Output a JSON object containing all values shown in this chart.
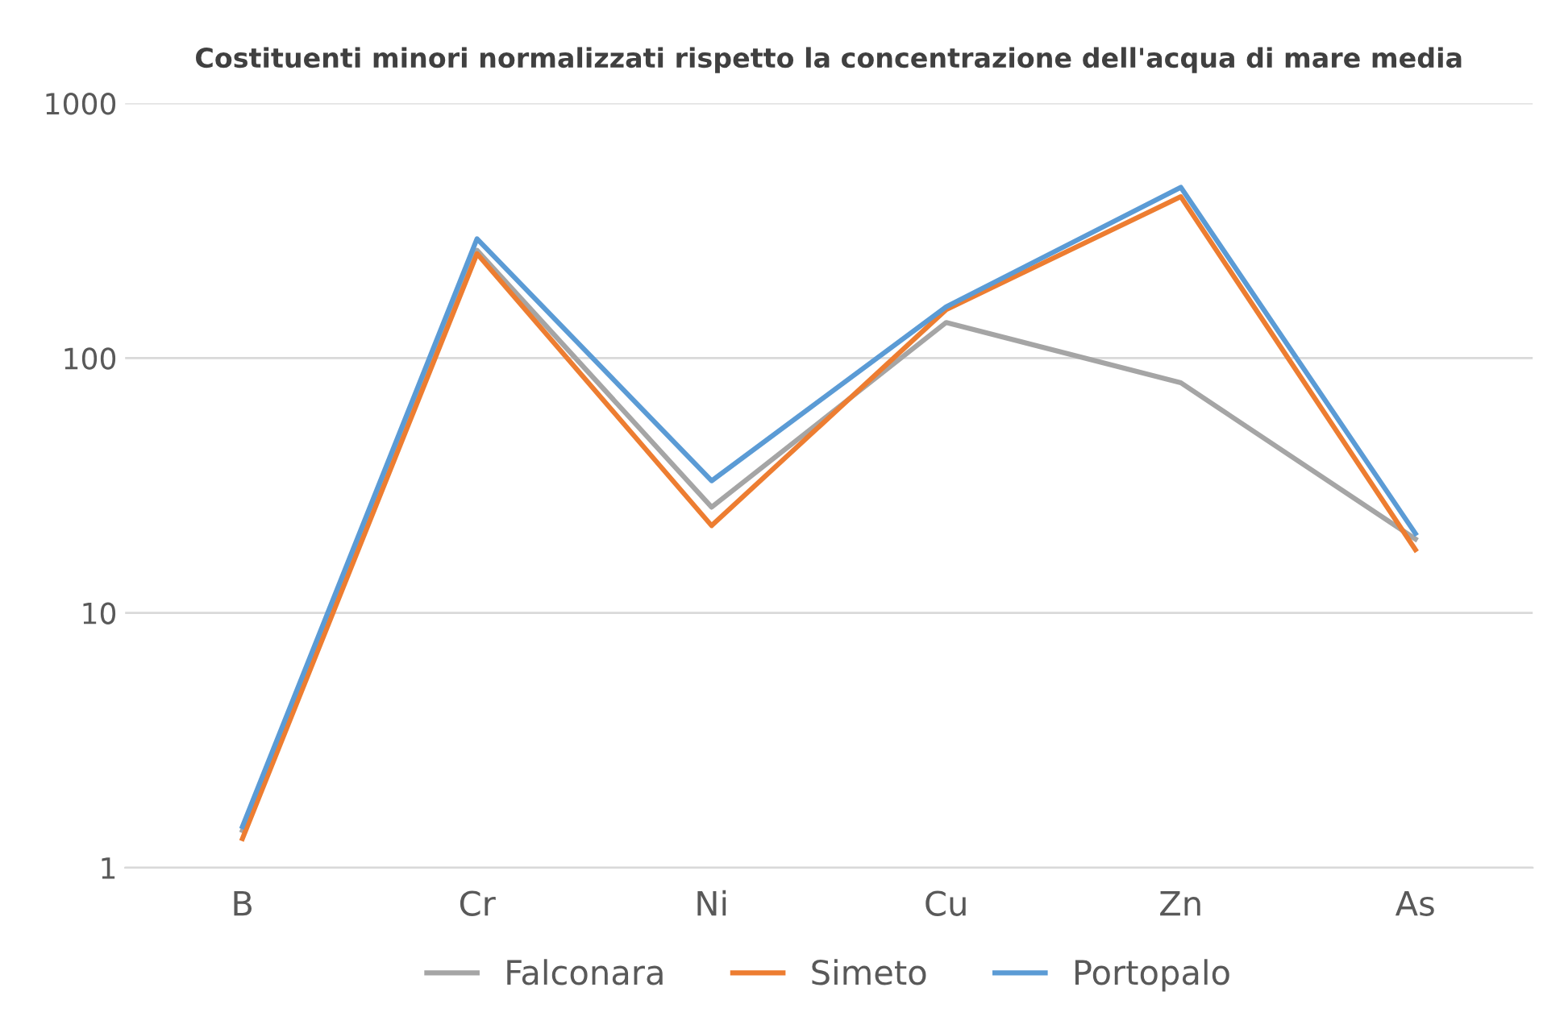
{
  "chart_data": {
    "type": "line",
    "title": "Costituenti minori normalizzati rispetto la concentrazione dell'acqua di mare media",
    "categories": [
      "B",
      "Cr",
      "Ni",
      "Cu",
      "Zn",
      "As"
    ],
    "series": [
      {
        "name": "Falconara",
        "color": "#a5a5a5",
        "values": [
          1.4,
          265,
          26,
          138,
          80,
          19.5
        ]
      },
      {
        "name": "Simeto",
        "color": "#ed7d31",
        "values": [
          1.3,
          257,
          22,
          155,
          430,
          17.7
        ]
      },
      {
        "name": "Portopalo",
        "color": "#5b9bd5",
        "values": [
          1.45,
          294,
          33,
          159,
          468,
          20.5
        ]
      }
    ],
    "log": "y",
    "ylim": [
      1,
      1000
    ],
    "yticks": [
      1,
      10,
      100,
      1000
    ],
    "grid": "y",
    "legend": "bottom",
    "marker": "none",
    "line_style": "solid"
  }
}
